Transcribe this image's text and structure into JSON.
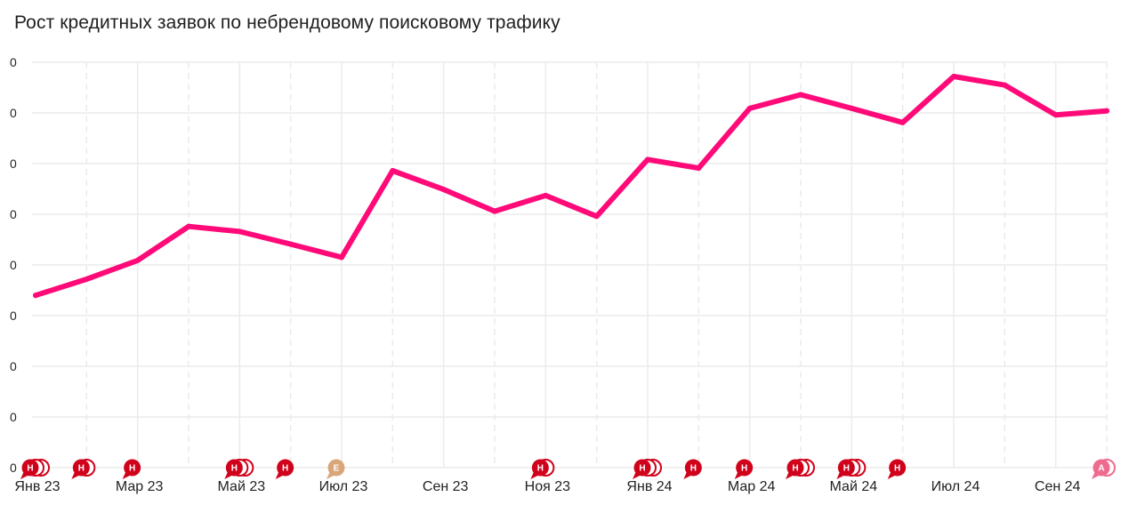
{
  "title": "Рост кредитных заявок по небрендовому поисковому трафику",
  "colors": {
    "line": "#ff0a78",
    "grid": "#ebebeb",
    "flag_h": "#d0021b",
    "flag_e": "#d9a679",
    "flag_a": "#ee6b8f"
  },
  "chart_data": {
    "type": "line",
    "title": "Рост кредитных заявок по небрендовому поисковому трафику",
    "xlabel": "",
    "ylabel": "",
    "x": [
      "2023-01",
      "2023-02",
      "2023-03",
      "2023-04",
      "2023-05",
      "2023-06",
      "2023-07",
      "2023-08",
      "2023-09",
      "2023-10",
      "2023-11",
      "2023-12",
      "2024-01",
      "2024-02",
      "2024-03",
      "2024-04",
      "2024-05",
      "2024-06",
      "2024-07",
      "2024-08",
      "2024-09",
      "2024-10"
    ],
    "x_tick_labels": [
      {
        "x": "2023-01",
        "label": "Янв 23"
      },
      {
        "x": "2023-03",
        "label": "Мар 23"
      },
      {
        "x": "2023-05",
        "label": "Май 23"
      },
      {
        "x": "2023-07",
        "label": "Июл 23"
      },
      {
        "x": "2023-09",
        "label": "Сен 23"
      },
      {
        "x": "2023-11",
        "label": "Ноя 23"
      },
      {
        "x": "2024-01",
        "label": "Янв 24"
      },
      {
        "x": "2024-03",
        "label": "Мар 24"
      },
      {
        "x": "2024-05",
        "label": "Май 24"
      },
      {
        "x": "2024-07",
        "label": "Июл 24"
      },
      {
        "x": "2024-09",
        "label": "Сен 24"
      }
    ],
    "y_tick_labels": [
      "0",
      "0",
      "0",
      "0",
      "0",
      "0",
      "0",
      "0",
      "0"
    ],
    "ylim": [
      0,
      8
    ],
    "grid": true,
    "legend": "none",
    "series": [
      {
        "values": [
          3.4,
          3.72,
          4.09,
          4.76,
          4.66,
          4.41,
          4.15,
          5.86,
          5.49,
          5.06,
          5.37,
          4.96,
          6.08,
          5.91,
          7.09,
          7.36,
          7.09,
          6.81,
          7.72,
          7.55,
          6.96,
          7.04
        ]
      }
    ],
    "event_flags": [
      {
        "x": "2023-01",
        "letter": "Н",
        "count": 3,
        "kind": "h"
      },
      {
        "x": "2023-02",
        "letter": "Н",
        "count": 2,
        "kind": "h"
      },
      {
        "x": "2023-03",
        "letter": "Н",
        "count": 1,
        "kind": "h"
      },
      {
        "x": "2023-05",
        "letter": "Н",
        "count": 3,
        "kind": "h"
      },
      {
        "x": "2023-06",
        "letter": "Н",
        "count": 1,
        "kind": "h"
      },
      {
        "x": "2023-07",
        "letter": "E",
        "count": 1,
        "kind": "e"
      },
      {
        "x": "2023-11",
        "letter": "Н",
        "count": 2,
        "kind": "h"
      },
      {
        "x": "2024-01",
        "letter": "Н",
        "count": 3,
        "kind": "h"
      },
      {
        "x": "2024-02",
        "letter": "Н",
        "count": 1,
        "kind": "h"
      },
      {
        "x": "2024-03",
        "letter": "Н",
        "count": 1,
        "kind": "h"
      },
      {
        "x": "2024-04",
        "letter": "Н",
        "count": 3,
        "kind": "h"
      },
      {
        "x": "2024-05",
        "letter": "Н",
        "count": 3,
        "kind": "h"
      },
      {
        "x": "2024-06",
        "letter": "Н",
        "count": 1,
        "kind": "h"
      },
      {
        "x": "2024-10",
        "letter": "A",
        "count": 2,
        "kind": "a"
      }
    ]
  }
}
